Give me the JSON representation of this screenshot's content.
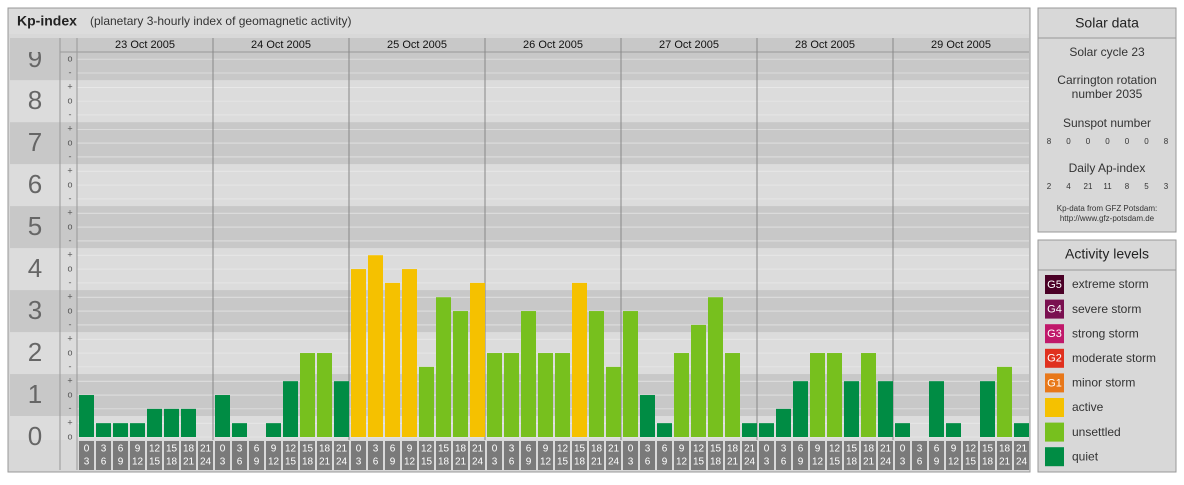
{
  "chart_data": {
    "type": "bar",
    "title": "Kp-index",
    "subtitle": "(planetary 3-hourly index of geomagnetic activity)",
    "days": [
      "23 Oct 2005",
      "24 Oct 2005",
      "25 Oct 2005",
      "26 Oct 2005",
      "27 Oct 2005",
      "28 Oct 2005",
      "29 Oct 2005"
    ],
    "hour_ranges": [
      [
        0,
        3
      ],
      [
        3,
        6
      ],
      [
        6,
        9
      ],
      [
        9,
        12
      ],
      [
        12,
        15
      ],
      [
        15,
        18
      ],
      [
        18,
        21
      ],
      [
        21,
        24
      ]
    ],
    "values": [
      1,
      0.33,
      0.33,
      0.33,
      0.67,
      0.67,
      0.67,
      0,
      1,
      0.33,
      0,
      0.33,
      1.33,
      2,
      2,
      1.33,
      4,
      4.33,
      3.67,
      4,
      1.67,
      3.33,
      3,
      3.67,
      2,
      2,
      3,
      2,
      2,
      3.67,
      3,
      1.67,
      3,
      1,
      0.33,
      2,
      2.67,
      3.33,
      2,
      0.33,
      0.33,
      0.67,
      1.33,
      2,
      2,
      1.33,
      2,
      1.33,
      0.33,
      0,
      1.33,
      0.33,
      0,
      1.33,
      1.67,
      0.33
    ],
    "colors": [
      "#008c44",
      "#008c44",
      "#008c44",
      "#008c44",
      "#008c44",
      "#008c44",
      "#008c44",
      "#008c44",
      "#008c44",
      "#008c44",
      "#008c44",
      "#008c44",
      "#008c44",
      "#77c01e",
      "#77c01e",
      "#008c44",
      "#f5c100",
      "#f5c100",
      "#f5c100",
      "#f5c100",
      "#77c01e",
      "#77c01e",
      "#77c01e",
      "#f5c100",
      "#77c01e",
      "#77c01e",
      "#77c01e",
      "#77c01e",
      "#77c01e",
      "#f5c100",
      "#77c01e",
      "#77c01e",
      "#77c01e",
      "#008c44",
      "#008c44",
      "#77c01e",
      "#77c01e",
      "#77c01e",
      "#77c01e",
      "#008c44",
      "#008c44",
      "#008c44",
      "#008c44",
      "#77c01e",
      "#77c01e",
      "#008c44",
      "#77c01e",
      "#008c44",
      "#008c44",
      "#008c44",
      "#008c44",
      "#008c44",
      "#008c44",
      "#008c44",
      "#77c01e",
      "#008c44"
    ],
    "ylim": [
      0,
      9.17
    ],
    "yticks": [
      0,
      1,
      2,
      3,
      4,
      5,
      6,
      7,
      8,
      9
    ],
    "yticks_minor": [
      {
        "value": 0,
        "label": "o"
      },
      {
        "value": 0.33,
        "label": "+"
      },
      {
        "value": 0.67,
        "label": "-"
      },
      {
        "value": 1,
        "label": "o"
      },
      {
        "value": 1.33,
        "label": "+"
      },
      {
        "value": 1.67,
        "label": "-"
      },
      {
        "value": 2,
        "label": "o"
      },
      {
        "value": 2.33,
        "label": "+"
      },
      {
        "value": 2.67,
        "label": "-"
      },
      {
        "value": 3,
        "label": "o"
      },
      {
        "value": 3.33,
        "label": "+"
      },
      {
        "value": 3.67,
        "label": "-"
      },
      {
        "value": 4,
        "label": "o"
      },
      {
        "value": 4.33,
        "label": "+"
      },
      {
        "value": 4.67,
        "label": "-"
      },
      {
        "value": 5,
        "label": "o"
      },
      {
        "value": 5.33,
        "label": "+"
      },
      {
        "value": 5.67,
        "label": "-"
      },
      {
        "value": 6,
        "label": "o"
      },
      {
        "value": 6.33,
        "label": "+"
      },
      {
        "value": 6.67,
        "label": "-"
      },
      {
        "value": 7,
        "label": "o"
      },
      {
        "value": 7.33,
        "label": "+"
      },
      {
        "value": 7.67,
        "label": "-"
      },
      {
        "value": 8,
        "label": "o"
      },
      {
        "value": 8.33,
        "label": "+"
      },
      {
        "value": 8.67,
        "label": "-"
      },
      {
        "value": 9,
        "label": "o"
      }
    ],
    "solar_data": {
      "title": "Solar data",
      "cycle": "Solar cycle 23",
      "carrington": [
        "Carrington rotation",
        "number 2035"
      ],
      "sunspot_title": "Sunspot number",
      "sunspot": [
        8,
        0,
        0,
        0,
        0,
        0,
        8
      ],
      "ap_title": "Daily Ap-index",
      "ap": [
        2,
        4,
        21,
        11,
        8,
        5,
        3
      ],
      "source": [
        "Kp-data from GFZ Potsdam:",
        "http://www.gfz-potsdam.de"
      ]
    },
    "activity_levels": {
      "title": "Activity levels",
      "items": [
        {
          "code": "G5",
          "label": "extreme storm",
          "color": "#4a0026"
        },
        {
          "code": "G4",
          "label": "severe storm",
          "color": "#7a1050"
        },
        {
          "code": "G3",
          "label": "strong storm",
          "color": "#c0186a"
        },
        {
          "code": "G2",
          "label": "moderate storm",
          "color": "#e0301e"
        },
        {
          "code": "G1",
          "label": "minor storm",
          "color": "#e8781a"
        },
        {
          "label": "active",
          "color": "#f5c100"
        },
        {
          "label": "unsettled",
          "color": "#77c01e"
        },
        {
          "label": "quiet",
          "color": "#008c44"
        }
      ]
    }
  }
}
